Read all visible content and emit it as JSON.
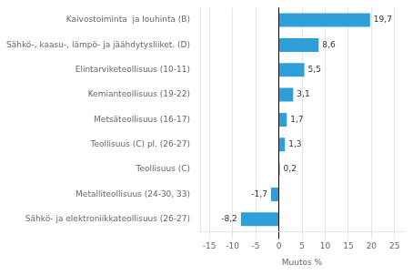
{
  "chart_data": {
    "type": "bar",
    "orientation": "horizontal",
    "categories": [
      "Sähkö- ja elektroniikkateollisuus (26-27)",
      "Metalliteollisuus (24-30, 33)",
      "Teollisuus (C)",
      "Teollisuus (C) pl. (26-27)",
      "Metsäteollisuus (16-17)",
      "Kemianteollisuus (19-22)",
      "Elintarviketeollisuus (10-11)",
      "Sähkö-, kaasu-, lämpö- ja jäähdytysliiket. (D)",
      "Kaivostoiminta  ja louhinta (B)"
    ],
    "values": [
      -8.2,
      -1.7,
      0.2,
      1.3,
      1.7,
      3.1,
      5.5,
      8.6,
      19.7
    ],
    "value_labels": [
      "-8,2",
      "-1,7",
      "0,2",
      "1,3",
      "1,7",
      "3,1",
      "5,5",
      "8,6",
      "19,7"
    ],
    "data_labels": true,
    "color": "#2e9fd8",
    "xlabel": "Muutos %",
    "xlim": [
      -17,
      27
    ],
    "xticks": [
      -15,
      -10,
      -5,
      0,
      5,
      10,
      15,
      20,
      25
    ],
    "grid": true
  }
}
